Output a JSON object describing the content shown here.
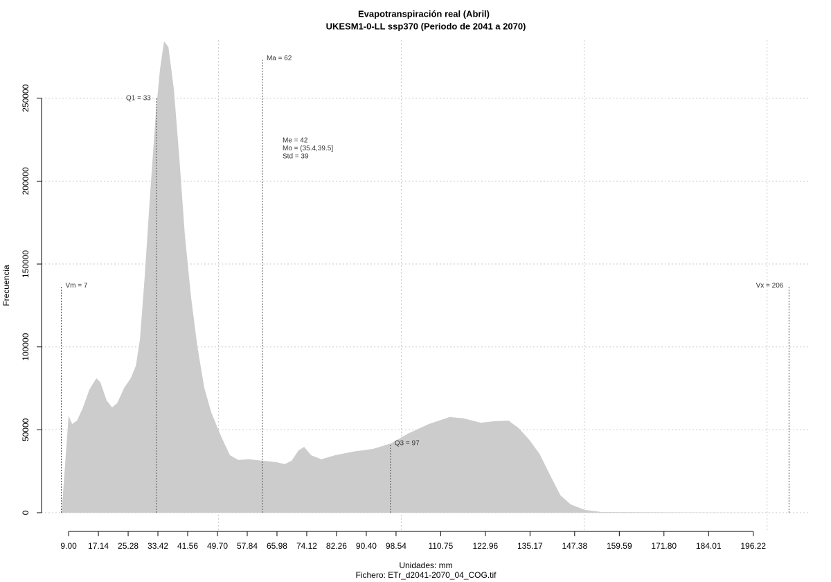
{
  "chart_data": {
    "type": "area",
    "title": "Evapotranspiración real (Abril)",
    "subtitle": "UKESM1-0-LL ssp370 (Periodo de 2041 a 2070)",
    "x_label": "Unidades: mm",
    "caption": "Fichero: ETr_d2041-2070_04_COG.tif",
    "y_label": "Frecuencia",
    "color": "#cccccc",
    "x": [
      7.1,
      9,
      9.95,
      11.3,
      12.8,
      14.7,
      16.6,
      17.7,
      19.4,
      20.9,
      22.3,
      24.2,
      26.0,
      27.4,
      28.5,
      29.8,
      31.3,
      32.9,
      34.0,
      35.1,
      36.3,
      37.8,
      39.3,
      40.8,
      42.5,
      44.2,
      46.1,
      48.0,
      50.7,
      53.1,
      55.4,
      58.2,
      62.0,
      65.8,
      68.1,
      70.0,
      71.9,
      73.4,
      75.3,
      78.1,
      81.9,
      86.7,
      92.3,
      97.1,
      101.8,
      107.5,
      113.2,
      117.0,
      121.7,
      125.5,
      129.3,
      132.1,
      135.0,
      137.8,
      140.6,
      143.5,
      146.3,
      150.1,
      154.8,
      204.0
    ],
    "y": [
      0,
      58500,
      53500,
      55600,
      62700,
      74400,
      81100,
      78600,
      67700,
      63500,
      66100,
      75300,
      81100,
      88600,
      104500,
      142100,
      192300,
      242500,
      267600,
      284300,
      280900,
      255000,
      213200,
      167200,
      129600,
      100300,
      75300,
      60600,
      46000,
      34700,
      31800,
      32200,
      31400,
      30500,
      29300,
      31400,
      37600,
      39700,
      34700,
      32200,
      34700,
      36800,
      38500,
      41800,
      47700,
      53500,
      57700,
      56900,
      54300,
      55200,
      55600,
      51000,
      43900,
      35500,
      23000,
      10500,
      5000,
      1700,
      400,
      0
    ],
    "xlim": [
      1.6,
      211.8
    ],
    "ylim": [
      -11700,
      285000
    ],
    "xticks": [
      {
        "value": 9,
        "label": "9.00"
      },
      17.14,
      25.28,
      33.42,
      41.56,
      {
        "value": 49.7,
        "label": "49.70"
      },
      57.84,
      65.98,
      74.12,
      82.26,
      {
        "value": 90.4,
        "label": "90.40"
      },
      98.54,
      110.75,
      122.96,
      135.17,
      147.38,
      159.59,
      {
        "value": 171.8,
        "label": "171.80"
      },
      184.01,
      196.22
    ],
    "yticks": [
      0,
      50000,
      100000,
      150000,
      200000,
      250000
    ],
    "grid": true,
    "xgrid": [
      50,
      100,
      150,
      200
    ],
    "markers": [
      {
        "label": "Vm = 7",
        "x": 7,
        "top": 137000
      },
      {
        "label": "Q1 = 33",
        "x": 33,
        "top": 250000
      },
      {
        "label": "Ma = 62",
        "x": 62,
        "top": 274000
      },
      {
        "label": "Q3 = 97",
        "x": 97,
        "top": 41800
      },
      {
        "label": "Vx = 206",
        "x": 206,
        "top": 137000
      }
    ],
    "stats": [
      "Me = 42",
      "Mo = (35.4,39.5]",
      "Std = 39"
    ]
  }
}
